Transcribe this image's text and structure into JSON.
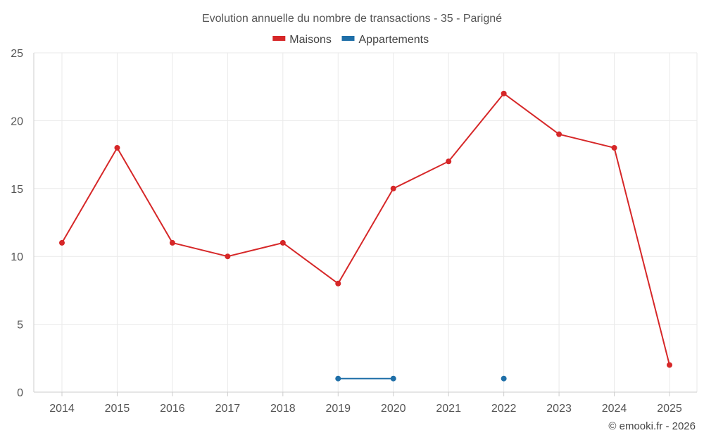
{
  "chart_data": {
    "type": "line",
    "title": "Evolution annuelle du nombre de transactions - 35 - Parigné",
    "xlabel": "",
    "ylabel": "",
    "categories": [
      "2014",
      "2015",
      "2016",
      "2017",
      "2018",
      "2019",
      "2020",
      "2021",
      "2022",
      "2023",
      "2024",
      "2025"
    ],
    "ylim": [
      0,
      25
    ],
    "yticks": [
      0,
      5,
      10,
      15,
      20,
      25
    ],
    "grid": true,
    "legend_position": "top-center",
    "series": [
      {
        "name": "Maisons",
        "color": "#d62728",
        "values": [
          11,
          18,
          11,
          10,
          11,
          8,
          15,
          17,
          22,
          19,
          18,
          2
        ]
      },
      {
        "name": "Appartements",
        "color": "#1f6fa8",
        "values": [
          null,
          null,
          null,
          null,
          null,
          1,
          1,
          null,
          1,
          null,
          null,
          null
        ]
      }
    ]
  },
  "credit": "© emooki.fr - 2026"
}
